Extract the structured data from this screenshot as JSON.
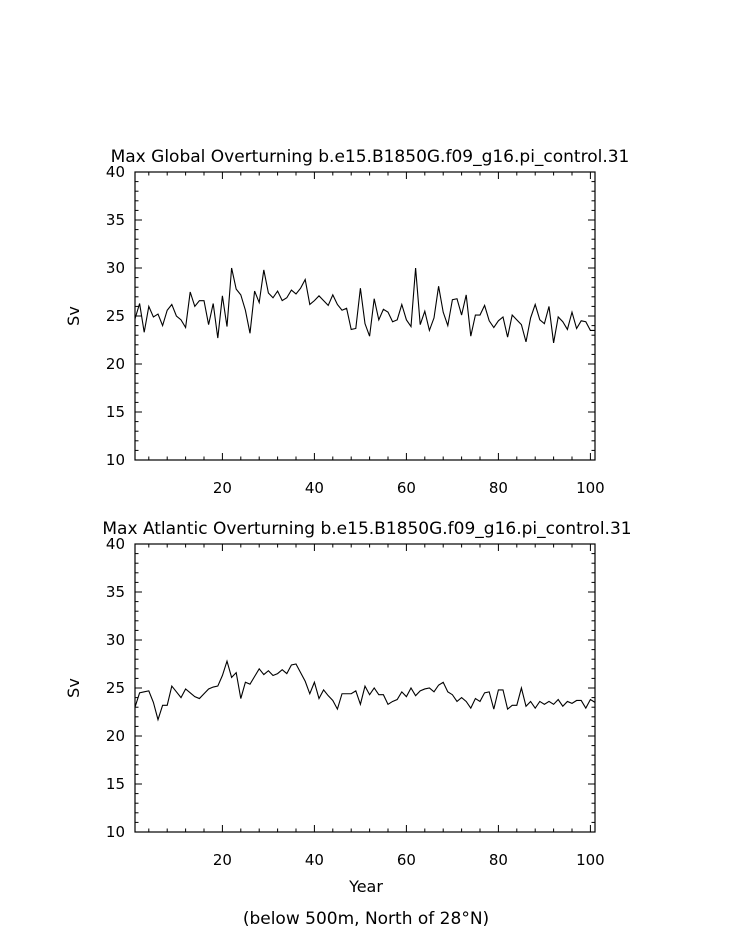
{
  "footnote": "(below 500m, North of 28°N)",
  "chart_data": [
    {
      "type": "line",
      "title": "Max Global Overturning b.e15.B1850G.f09_g16.pi_control.31",
      "xlabel": "",
      "ylabel": "Sv",
      "xlim": [
        1,
        101
      ],
      "ylim": [
        10,
        40
      ],
      "xticks": [
        20,
        40,
        60,
        80,
        100
      ],
      "yticks": [
        10,
        15,
        20,
        25,
        30,
        35,
        40
      ],
      "grid": false,
      "line_color": "#000000",
      "series": [
        {
          "x": [
            1,
            2,
            3,
            4,
            5,
            6,
            7,
            8,
            9,
            10,
            11,
            12,
            13,
            14,
            15,
            16,
            17,
            18,
            19,
            20,
            21,
            22,
            23,
            24,
            25,
            26,
            27,
            28,
            29,
            30,
            31,
            32,
            33,
            34,
            35,
            36,
            37,
            38,
            39,
            40,
            41,
            42,
            43,
            44,
            45,
            46,
            47,
            48,
            49,
            50,
            51,
            52,
            53,
            54,
            55,
            56,
            57,
            58,
            59,
            60,
            61,
            62,
            63,
            64,
            65,
            66,
            67,
            68,
            69,
            70,
            71,
            72,
            73,
            74,
            75,
            76,
            77,
            78,
            79,
            80,
            81,
            82,
            83,
            84,
            85,
            86,
            87,
            88,
            89,
            90,
            91,
            92,
            93,
            94,
            95,
            96,
            97,
            98,
            99,
            100,
            101
          ],
          "values": [
            24.7,
            26.3,
            23.3,
            26.0,
            24.9,
            25.2,
            24.0,
            25.6,
            26.2,
            25.0,
            24.6,
            23.8,
            27.5,
            26.0,
            26.6,
            26.6,
            24.1,
            26.3,
            22.7,
            27.1,
            23.9,
            30.0,
            27.8,
            27.2,
            25.6,
            23.2,
            27.6,
            26.4,
            29.8,
            27.4,
            26.9,
            27.6,
            26.6,
            26.9,
            27.7,
            27.3,
            27.9,
            28.8,
            26.2,
            26.6,
            27.1,
            26.6,
            26.1,
            27.2,
            26.2,
            25.6,
            25.8,
            23.6,
            23.7,
            27.9,
            24.2,
            22.9,
            26.8,
            24.6,
            25.7,
            25.4,
            24.4,
            24.6,
            26.2,
            24.6,
            23.9,
            30.0,
            24.1,
            25.5,
            23.5,
            24.8,
            28.1,
            25.4,
            24.0,
            26.7,
            26.8,
            25.1,
            27.2,
            22.9,
            25.1,
            25.1,
            26.1,
            24.5,
            23.8,
            24.5,
            24.9,
            22.8,
            25.1,
            24.6,
            24.1,
            22.3,
            24.8,
            26.2,
            24.6,
            24.2,
            26.0,
            22.2,
            24.9,
            24.4,
            23.6,
            25.4,
            23.7,
            24.5,
            24.4,
            23.5,
            23.5
          ]
        }
      ]
    },
    {
      "type": "line",
      "title": "Max Atlantic Overturning b.e15.B1850G.f09_g16.pi_control.31",
      "xlabel": "Year",
      "ylabel": "Sv",
      "xlim": [
        1,
        101
      ],
      "ylim": [
        10,
        40
      ],
      "xticks": [
        20,
        40,
        60,
        80,
        100
      ],
      "yticks": [
        10,
        15,
        20,
        25,
        30,
        35,
        40
      ],
      "grid": false,
      "line_color": "#000000",
      "series": [
        {
          "x": [
            1,
            2,
            3,
            4,
            5,
            6,
            7,
            8,
            9,
            10,
            11,
            12,
            13,
            14,
            15,
            16,
            17,
            18,
            19,
            20,
            21,
            22,
            23,
            24,
            25,
            26,
            27,
            28,
            29,
            30,
            31,
            32,
            33,
            34,
            35,
            36,
            37,
            38,
            39,
            40,
            41,
            42,
            43,
            44,
            45,
            46,
            47,
            48,
            49,
            50,
            51,
            52,
            53,
            54,
            55,
            56,
            57,
            58,
            59,
            60,
            61,
            62,
            63,
            64,
            65,
            66,
            67,
            68,
            69,
            70,
            71,
            72,
            73,
            74,
            75,
            76,
            77,
            78,
            79,
            80,
            81,
            82,
            83,
            84,
            85,
            86,
            87,
            88,
            89,
            90,
            91,
            92,
            93,
            94,
            95,
            96,
            97,
            98,
            99,
            100,
            101
          ],
          "values": [
            23.0,
            24.5,
            24.6,
            24.7,
            23.5,
            21.7,
            23.2,
            23.2,
            25.2,
            24.6,
            24.0,
            24.9,
            24.5,
            24.1,
            23.9,
            24.4,
            24.9,
            25.1,
            25.2,
            26.3,
            27.8,
            26.1,
            26.6,
            23.9,
            25.6,
            25.4,
            26.2,
            27.0,
            26.4,
            26.8,
            26.3,
            26.5,
            26.9,
            26.5,
            27.4,
            27.5,
            26.6,
            25.7,
            24.4,
            25.6,
            23.9,
            24.8,
            24.2,
            23.7,
            22.8,
            24.4,
            24.4,
            24.4,
            24.7,
            23.3,
            25.2,
            24.3,
            25.0,
            24.3,
            24.3,
            23.3,
            23.6,
            23.8,
            24.6,
            24.1,
            25.0,
            24.2,
            24.7,
            24.9,
            25.0,
            24.6,
            25.3,
            25.6,
            24.6,
            24.3,
            23.6,
            24.0,
            23.6,
            22.9,
            23.9,
            23.6,
            24.5,
            24.6,
            22.8,
            24.8,
            24.8,
            22.8,
            23.2,
            23.2,
            25.0,
            23.1,
            23.6,
            22.9,
            23.6,
            23.3,
            23.6,
            23.3,
            23.8,
            23.1,
            23.6,
            23.4,
            23.7,
            23.7,
            22.9,
            23.8,
            23.5
          ]
        }
      ]
    }
  ]
}
